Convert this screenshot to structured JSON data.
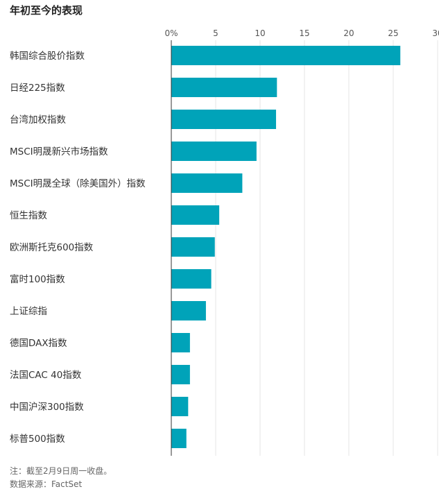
{
  "title": "年初至今的表现",
  "notes": {
    "line1": "注：截至2月9日周一收盘。",
    "line2": "数据来源：FactSet"
  },
  "chart_data": {
    "type": "bar",
    "orientation": "horizontal",
    "categories": [
      "韩国综合股价指数",
      "日经225指数",
      "台湾加权指数",
      "MSCI明晟新兴市场指数",
      "MSCI明晟全球（除美国外）指数",
      "恒生指数",
      "欧洲斯托克600指数",
      "富时100指数",
      "上证综指",
      "德国DAX指数",
      "法国CAC 40指数",
      "中国沪深300指数",
      "标普500指数"
    ],
    "values": [
      25.8,
      11.9,
      11.8,
      9.6,
      8.0,
      5.4,
      4.9,
      4.5,
      3.9,
      2.1,
      2.1,
      1.9,
      1.7
    ],
    "xlim": [
      0,
      30
    ],
    "xticks": [
      0,
      5,
      10,
      15,
      20,
      25,
      30
    ],
    "xtick_labels": [
      "0%",
      "5",
      "10",
      "15",
      "20",
      "25",
      "30"
    ],
    "grid": true,
    "bar_color": "#00a3b9",
    "grid_color": "#e6e6e6",
    "axis_color": "#333333"
  }
}
